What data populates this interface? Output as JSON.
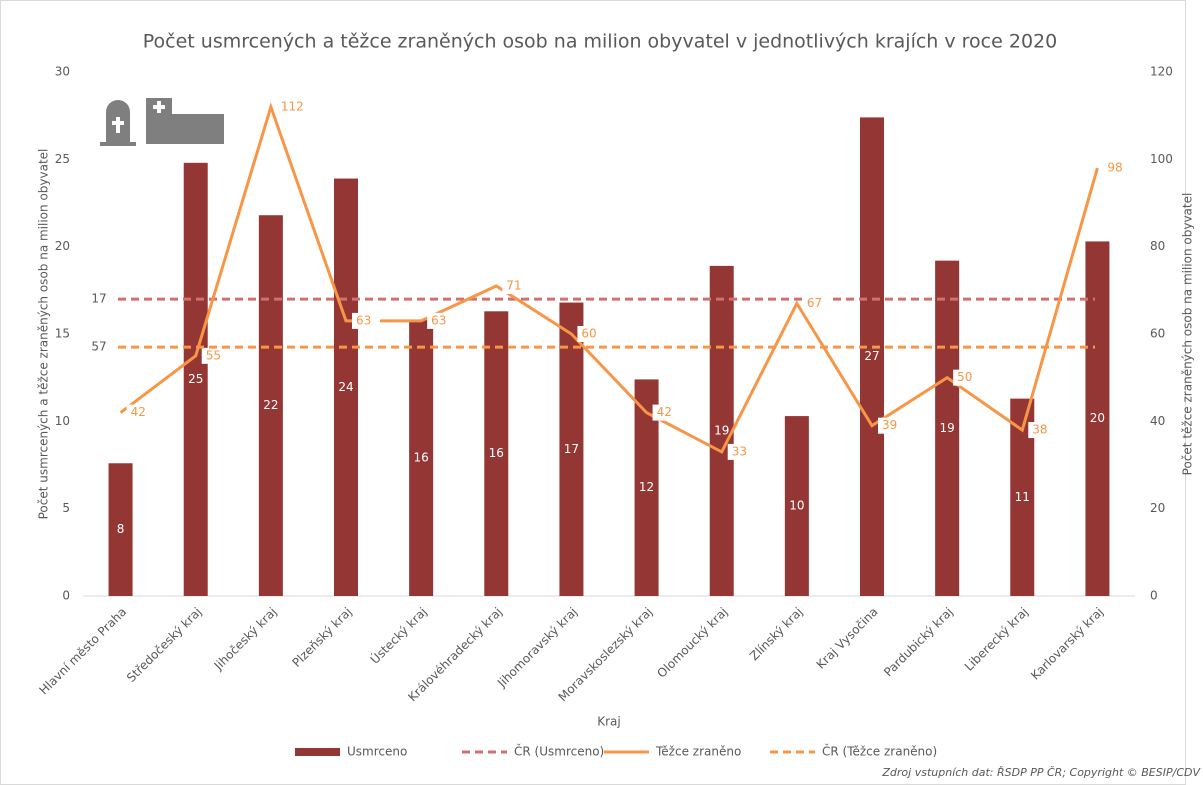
{
  "chart_data": {
    "type": "bar",
    "title": "Počet usmrcených a těžce zraněných osob na milion obyvatel v jednotlivých krajích v roce 2020",
    "x_label": "Kraj",
    "y_label": "Počet usmrcených a těžce zraněných osob na milion obyvatel",
    "y2_label": "Počet těžce zraněných osob na milion obyvatel",
    "source": "Zdroj vstupních dat: ŘSDP PP ČR; Copyright © BESIP/CDV",
    "categories": [
      "Hlavní město Praha",
      "Středočeský kraj",
      "Jihočeský kraj",
      "Plzeňský kraj",
      "Ústecký kraj",
      "Královéhradecký kraj",
      "Jihomoravský kraj",
      "Moravskoslezský kraj",
      "Olomoucký kraj",
      "Zlínský kraj",
      "Kraj Vysočina",
      "Pardubický kraj",
      "Liberecký kraj",
      "Karlovarský kraj"
    ],
    "series": [
      {
        "name": "Usmrceno",
        "type": "bar",
        "color": "#943634",
        "axis": "y",
        "values": [
          7.6,
          24.8,
          21.8,
          23.9,
          15.8,
          16.3,
          16.8,
          12.4,
          18.9,
          10.3,
          27.4,
          19.2,
          11.3,
          20.3
        ],
        "value_labels": [
          "8",
          "25",
          "22",
          "24",
          "16",
          "16",
          "17",
          "12",
          "19",
          "10",
          "27",
          "19",
          "11",
          "20"
        ]
      },
      {
        "name": "ČR (Usmrceno)",
        "type": "reference",
        "color": "#d27070",
        "axis": "y",
        "dashed": true,
        "value": 17
      },
      {
        "name": "Těžce zraněno",
        "type": "line",
        "color": "#f79646",
        "axis": "y2",
        "values": [
          42,
          55,
          112,
          63,
          63,
          71,
          60,
          42,
          33,
          67,
          39,
          50,
          38,
          98
        ]
      },
      {
        "name": "ČR (Těžce zraněno)",
        "type": "reference",
        "color": "#f79646",
        "axis": "y2",
        "dashed": true,
        "value": 57
      }
    ],
    "ylim": [
      0,
      30
    ],
    "yticks": [
      0,
      5,
      10,
      15,
      20,
      25,
      30
    ],
    "y2lim": [
      0,
      120
    ],
    "y2ticks": [
      0,
      20,
      40,
      60,
      80,
      100,
      120
    ],
    "grid": false,
    "legend": "bottom"
  }
}
